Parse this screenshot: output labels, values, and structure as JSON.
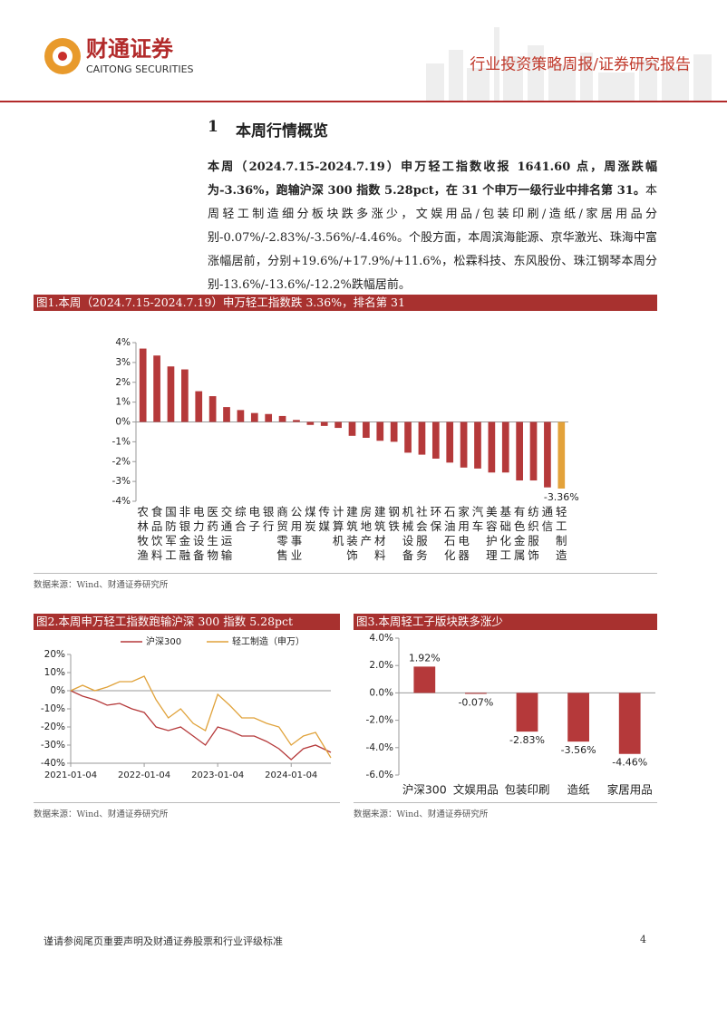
{
  "header": {
    "brand": "财通证券",
    "brand_en": "CAITONG SECURITIES",
    "report_type": "行业投资策略周报/证券研究报告"
  },
  "section": {
    "number": "1",
    "title": "本周行情概览"
  },
  "paragraph": [
    {
      "text": "本周（2024.7.15-2024.7.19）申万轻工指数收报 1641.60 点，周涨跌幅为-3.36%，跑输沪深 300 指数 5.28pct，在 31 个申万一级行业中排名第 31。",
      "bold": true
    },
    {
      "text": "本周轻工制造细分板块跌多涨少，文娱用品/包装印刷/造纸/家居用品分别-0.07%/-2.83%/-3.56%/-4.46%。个股方面，本周滨海能源、京华激光、珠海中富涨幅居前，分别+19.6%/+17.9%/+11.6%，松霖科技、东风股份、珠江钢琴本周分别-13.6%/-13.6%/-12.2%跌幅居前。"
    }
  ],
  "chart_data": [
    {
      "type": "bar",
      "title": "图1.本周（2024.7.15-2024.7.19）申万轻工指数跌 3.36%，排名第 31",
      "categories": [
        "农林牧渔",
        "食品饮料",
        "国防军工",
        "非银金融",
        "电力设备",
        "医药生物",
        "交通运输",
        "综合",
        "电子",
        "银行",
        "商贸零售",
        "公用事业",
        "煤炭",
        "传媒",
        "计算机",
        "建筑装饰",
        "房地产",
        "建筑材料",
        "钢铁",
        "机械设备",
        "社会服务",
        "环保",
        "石油石化",
        "家用电器",
        "汽车",
        "美容护理",
        "基础化工",
        "有色金属",
        "纺织服饰",
        "通信",
        "轻工制造"
      ],
      "values": [
        3.7,
        3.35,
        2.8,
        2.65,
        1.55,
        1.3,
        0.75,
        0.6,
        0.45,
        0.4,
        0.3,
        0.1,
        -0.15,
        -0.2,
        -0.3,
        -0.7,
        -0.8,
        -0.95,
        -1.0,
        -1.55,
        -1.65,
        -1.85,
        -2.05,
        -2.3,
        -2.35,
        -2.55,
        -2.55,
        -2.95,
        -2.95,
        -3.3,
        -3.36
      ],
      "value_labels": [
        null,
        null,
        null,
        null,
        null,
        null,
        null,
        null,
        null,
        null,
        null,
        null,
        null,
        null,
        null,
        null,
        null,
        null,
        null,
        null,
        null,
        null,
        null,
        null,
        null,
        null,
        null,
        null,
        null,
        null,
        "-3.36%"
      ],
      "colors": [
        "#b5393a",
        "#b5393a",
        "#b5393a",
        "#b5393a",
        "#b5393a",
        "#b5393a",
        "#b5393a",
        "#b5393a",
        "#b5393a",
        "#b5393a",
        "#b5393a",
        "#b5393a",
        "#b5393a",
        "#b5393a",
        "#b5393a",
        "#b5393a",
        "#b5393a",
        "#b5393a",
        "#b5393a",
        "#b5393a",
        "#b5393a",
        "#b5393a",
        "#b5393a",
        "#b5393a",
        "#b5393a",
        "#b5393a",
        "#b5393a",
        "#b5393a",
        "#b5393a",
        "#b5393a",
        "#e3a23a"
      ],
      "ylim": [
        -4,
        4
      ],
      "yticks": [
        {
          "value": -4,
          "label": "-4%"
        },
        {
          "value": -3,
          "label": "-3%"
        },
        {
          "value": -2,
          "label": "-2%"
        },
        {
          "value": -1,
          "label": "-1%"
        },
        {
          "value": 0,
          "label": "0%"
        },
        {
          "value": 1,
          "label": "1%"
        },
        {
          "value": 2,
          "label": "2%"
        },
        {
          "value": 3,
          "label": "3%"
        },
        {
          "value": 4,
          "label": "4%"
        }
      ],
      "grid": false,
      "source": "数据来源：Wind、财通证券研究所"
    },
    {
      "type": "line",
      "title": "图2.本周申万轻工指数跑输沪深 300 指数 5.28pct",
      "x": [
        "2021-01-04",
        "2021-03-04",
        "2021-05-04",
        "2021-07-04",
        "2021-09-04",
        "2021-11-04",
        "2022-01-04",
        "2022-03-04",
        "2022-05-04",
        "2022-07-04",
        "2022-09-04",
        "2022-11-04",
        "2023-01-04",
        "2023-03-04",
        "2023-05-04",
        "2023-07-04",
        "2023-09-04",
        "2023-11-04",
        "2024-01-04",
        "2024-03-04",
        "2024-05-04",
        "2024-07-19"
      ],
      "series": [
        {
          "name": "沪深300",
          "color": "#b5393a",
          "values": [
            0,
            -3,
            -5,
            -8,
            -7,
            -10,
            -12,
            -20,
            -22,
            -20,
            -25,
            -30,
            -20,
            -22,
            -25,
            -25,
            -28,
            -32,
            -38,
            -32,
            -30,
            -34
          ]
        },
        {
          "name": "轻工制造（申万）",
          "color": "#e0a23a",
          "values": [
            0,
            3,
            0,
            2,
            5,
            5,
            8,
            -5,
            -15,
            -10,
            -18,
            -22,
            -2,
            -8,
            -15,
            -15,
            -18,
            -20,
            -30,
            -25,
            -23,
            -37
          ]
        }
      ],
      "xlim": [
        "2021-01-04",
        "2024-07-19"
      ],
      "xticks": [
        "2021-01-04",
        "2022-01-04",
        "2023-01-04",
        "2024-01-04"
      ],
      "ylim": [
        -40,
        20
      ],
      "yticks": [
        {
          "value": -40,
          "label": "-40%"
        },
        {
          "value": -30,
          "label": "-30%"
        },
        {
          "value": -20,
          "label": "-20%"
        },
        {
          "value": -10,
          "label": "-10%"
        },
        {
          "value": 0,
          "label": "0%"
        },
        {
          "value": 10,
          "label": "10%"
        },
        {
          "value": 20,
          "label": "20%"
        }
      ],
      "grid": false,
      "source": "数据来源：Wind、财通证券研究所"
    },
    {
      "type": "bar",
      "title": "图3.本周轻工子版块跌多涨少",
      "categories": [
        "沪深300",
        "文娱用品",
        "包装印刷",
        "造纸",
        "家居用品"
      ],
      "values": [
        1.92,
        -0.07,
        -2.83,
        -3.56,
        -4.46
      ],
      "value_labels": [
        "1.92%",
        "-0.07%",
        "-2.83%",
        "-3.56%",
        "-4.46%"
      ],
      "color": "#b5393a",
      "ylim": [
        -6,
        4
      ],
      "yticks": [
        {
          "value": -6,
          "label": "-6.0%"
        },
        {
          "value": -4,
          "label": "-4.0%"
        },
        {
          "value": -2,
          "label": "-2.0%"
        },
        {
          "value": 0,
          "label": "0.0%"
        },
        {
          "value": 2,
          "label": "2.0%"
        },
        {
          "value": 4,
          "label": "4.0%"
        }
      ],
      "grid": false,
      "source": "数据来源：Wind、财通证券研究所"
    }
  ],
  "footer": {
    "disclaimer": "谨请参阅尾页重要声明及财通证券股票和行业评级标准",
    "page": "4"
  }
}
